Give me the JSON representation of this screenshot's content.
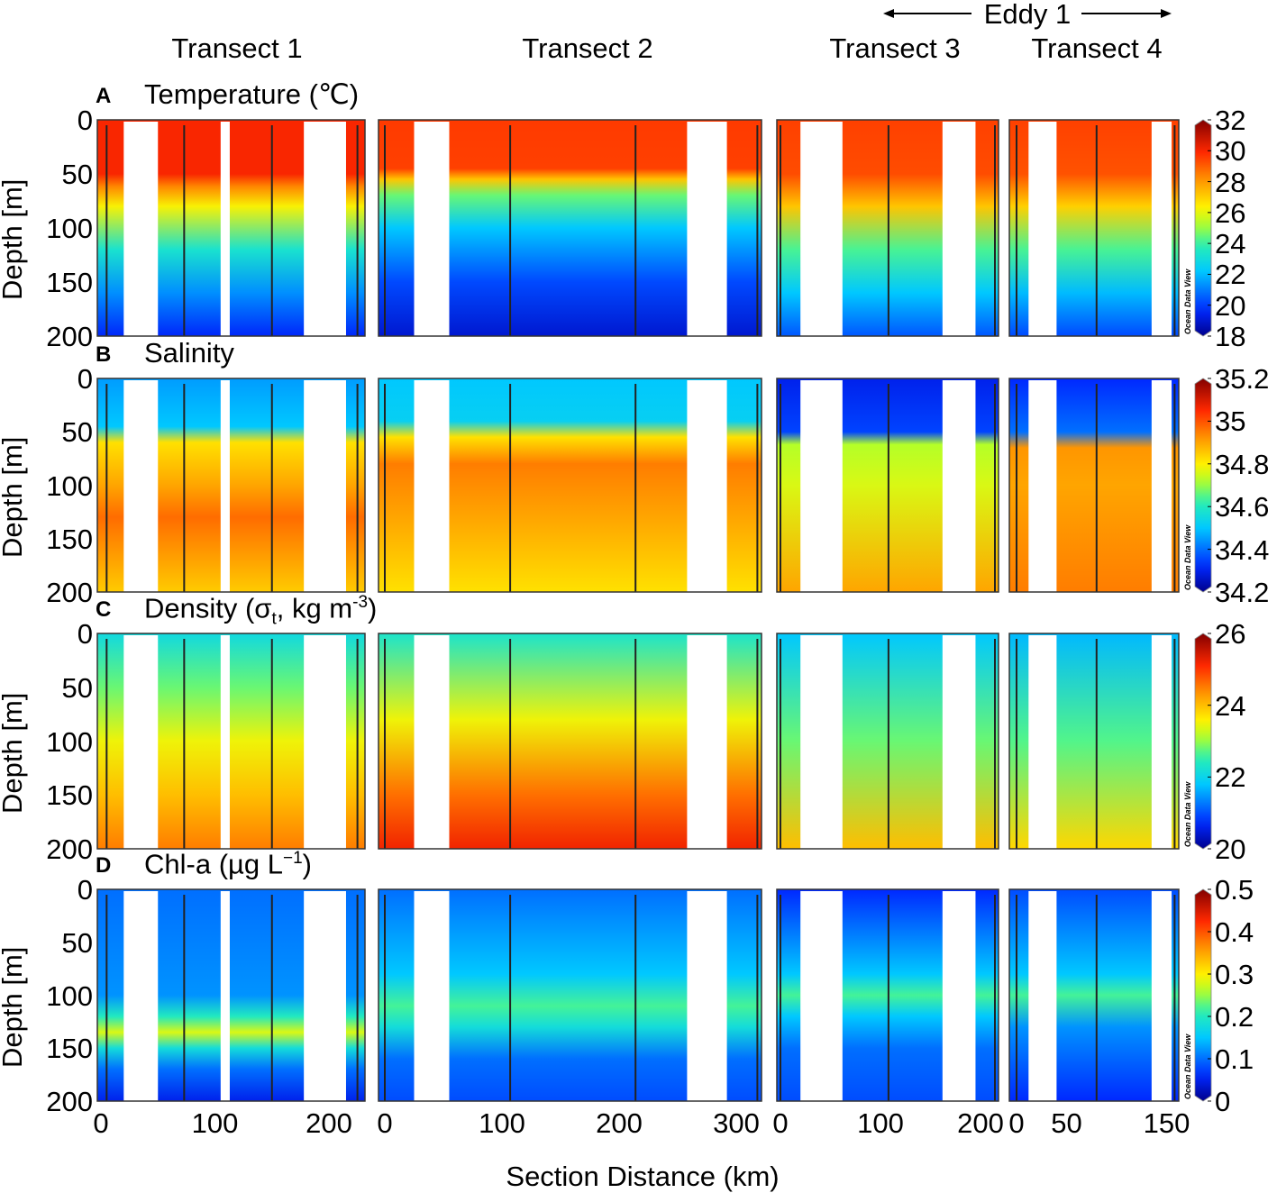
{
  "header": {
    "eddy_label": "Eddy 1",
    "transects": [
      "Transect 1",
      "Transect 2",
      "Transect 3",
      "Transect 4"
    ]
  },
  "xlabel": "Section Distance (km)",
  "ylabel": "Depth [m]",
  "watermark": "Ocean Data View",
  "chart_data": {
    "type": "heatmap",
    "depth_range": [
      0,
      200
    ],
    "depth_ticks": [
      "0",
      "50",
      "100",
      "150",
      "200"
    ],
    "transects": [
      {
        "name": "Transect 1",
        "xlim": [
          0,
          232
        ],
        "xticks": [
          "0",
          "100",
          "200"
        ],
        "xtick_values": [
          0,
          100,
          200
        ],
        "gaps": [
          [
            20,
            50
          ],
          [
            105,
            113
          ],
          [
            178,
            215
          ]
        ],
        "stations": [
          5,
          73,
          150,
          225
        ]
      },
      {
        "name": "Transect 2",
        "xlim": [
          0,
          322
        ],
        "xticks": [
          "0",
          "100",
          "200",
          "300"
        ],
        "xtick_values": [
          0,
          100,
          200,
          300
        ],
        "gaps": [
          [
            25,
            55
          ],
          [
            258,
            292
          ]
        ],
        "stations": [
          0,
          107,
          214,
          318
        ]
      },
      {
        "name": "Transect 3",
        "xlim": [
          0,
          218
        ],
        "xticks": [
          "0",
          "100",
          "200"
        ],
        "xtick_values": [
          0,
          100,
          200
        ],
        "gaps": [
          [
            20,
            62
          ],
          [
            162,
            195
          ]
        ],
        "stations": [
          0,
          108,
          217
        ]
      },
      {
        "name": "Transect 4",
        "xlim": [
          0,
          162
        ],
        "xticks": [
          "0",
          "50",
          "150"
        ],
        "xtick_values": [
          0,
          50,
          150
        ],
        "gaps": [
          [
            12,
            40
          ],
          [
            135,
            155
          ]
        ],
        "stations": [
          0,
          80,
          158
        ]
      }
    ],
    "variables": [
      {
        "letter": "A",
        "title": [
          "Temperature (℃)",
          "",
          "",
          "",
          ""
        ],
        "range": [
          18,
          32
        ],
        "cbar_ticks": [
          "18",
          "20",
          "22",
          "24",
          "26",
          "28",
          "30",
          "32"
        ],
        "cbar_values": [
          18,
          20,
          22,
          24,
          26,
          28,
          30,
          32
        ],
        "profiles": [
          [
            [
              0,
              30
            ],
            [
              50,
              30
            ],
            [
              62,
              28.3
            ],
            [
              80,
              26.3
            ],
            [
              120,
              23.3
            ],
            [
              160,
              21.3
            ],
            [
              200,
              19.6
            ]
          ],
          [
            [
              0,
              29.6
            ],
            [
              45,
              29.5
            ],
            [
              55,
              27.2
            ],
            [
              70,
              24.5
            ],
            [
              100,
              22.2
            ],
            [
              150,
              20.2
            ],
            [
              200,
              19
            ]
          ],
          [
            [
              0,
              29.5
            ],
            [
              50,
              29.3
            ],
            [
              80,
              27.2
            ],
            [
              120,
              24.2
            ],
            [
              160,
              22.2
            ],
            [
              200,
              20.4
            ]
          ],
          [
            [
              0,
              29.5
            ],
            [
              50,
              29.2
            ],
            [
              80,
              27
            ],
            [
              120,
              24.2
            ],
            [
              160,
              22
            ],
            [
              200,
              20.2
            ]
          ]
        ]
      },
      {
        "letter": "B",
        "title": [
          "Salinity",
          "",
          "",
          "",
          ""
        ],
        "range": [
          34.2,
          35.2
        ],
        "cbar_ticks": [
          "34.2",
          "34.4",
          "34.6",
          "34.8",
          "35",
          "35.2"
        ],
        "cbar_values": [
          34.2,
          34.4,
          34.6,
          34.8,
          35.0,
          35.2
        ],
        "profiles": [
          [
            [
              0,
              34.45
            ],
            [
              45,
              34.5
            ],
            [
              60,
              34.82
            ],
            [
              100,
              34.9
            ],
            [
              130,
              34.97
            ],
            [
              200,
              34.85
            ]
          ],
          [
            [
              0,
              34.5
            ],
            [
              40,
              34.52
            ],
            [
              55,
              34.82
            ],
            [
              80,
              34.95
            ],
            [
              130,
              34.9
            ],
            [
              200,
              34.82
            ]
          ],
          [
            [
              0,
              34.3
            ],
            [
              50,
              34.35
            ],
            [
              62,
              34.72
            ],
            [
              100,
              34.76
            ],
            [
              200,
              34.9
            ]
          ],
          [
            [
              0,
              34.32
            ],
            [
              50,
              34.4
            ],
            [
              65,
              34.92
            ],
            [
              100,
              34.9
            ],
            [
              200,
              34.95
            ]
          ]
        ]
      },
      {
        "letter": "C",
        "title": [
          "Density (σ",
          "t",
          ", kg m",
          "-3",
          ")"
        ],
        "range": [
          20,
          26
        ],
        "cbar_ticks": [
          "20",
          "22",
          "24",
          "26"
        ],
        "cbar_values": [
          20,
          22,
          24,
          26
        ],
        "profiles": [
          [
            [
              0,
              22.1
            ],
            [
              50,
              22.8
            ],
            [
              100,
              23.5
            ],
            [
              150,
              24
            ],
            [
              200,
              24.5
            ]
          ],
          [
            [
              0,
              22.3
            ],
            [
              80,
              23.5
            ],
            [
              150,
              24.6
            ],
            [
              200,
              25.2
            ]
          ],
          [
            [
              0,
              21.8
            ],
            [
              100,
              22.8
            ],
            [
              200,
              24
            ]
          ],
          [
            [
              0,
              21.7
            ],
            [
              100,
              22.7
            ],
            [
              200,
              23.8
            ]
          ]
        ]
      },
      {
        "letter": "D",
        "title": [
          "Chl-a (µg L",
          "",
          "",
          "−1",
          ")"
        ],
        "range": [
          0,
          0.5
        ],
        "cbar_ticks": [
          "0",
          "0.1",
          "0.2",
          "0.3",
          "0.4",
          "0.5"
        ],
        "cbar_values": [
          0,
          0.1,
          0.2,
          0.3,
          0.4,
          0.5
        ],
        "profiles": [
          [
            [
              0,
              0.1
            ],
            [
              100,
              0.12
            ],
            [
              120,
              0.2
            ],
            [
              135,
              0.28
            ],
            [
              150,
              0.18
            ],
            [
              170,
              0.1
            ],
            [
              200,
              0.05
            ]
          ],
          [
            [
              0,
              0.1
            ],
            [
              80,
              0.15
            ],
            [
              110,
              0.22
            ],
            [
              130,
              0.18
            ],
            [
              160,
              0.1
            ],
            [
              200,
              0.08
            ]
          ],
          [
            [
              0,
              0.06
            ],
            [
              80,
              0.15
            ],
            [
              100,
              0.22
            ],
            [
              120,
              0.15
            ],
            [
              150,
              0.1
            ],
            [
              200,
              0.08
            ]
          ],
          [
            [
              0,
              0.08
            ],
            [
              80,
              0.15
            ],
            [
              100,
              0.22
            ],
            [
              130,
              0.12
            ],
            [
              200,
              0.06
            ]
          ]
        ]
      }
    ]
  }
}
